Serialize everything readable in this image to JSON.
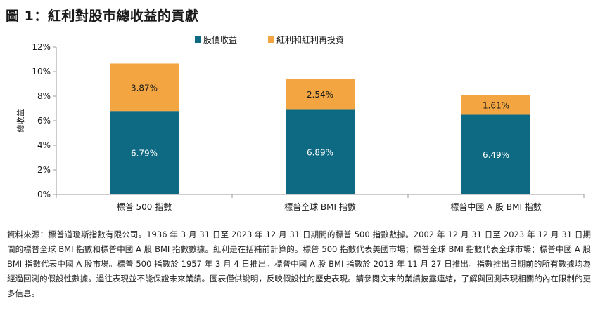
{
  "page": {
    "title": "圖 1：紅利對股市總收益的貢獻"
  },
  "chart_data": {
    "type": "bar",
    "stacked": true,
    "categories": [
      "標普 500 指數",
      "標普全球 BMI 指數",
      "標普中國 A 股 BMI 指數"
    ],
    "series": [
      {
        "name": "股價收益",
        "color": "#0e6a82",
        "values": [
          6.79,
          6.89,
          6.49
        ],
        "labels": [
          "6.79%",
          "6.89%",
          "6.49%"
        ],
        "label_color": "#ffffff"
      },
      {
        "name": "紅利和紅利再投資",
        "color": "#f2a541",
        "values": [
          3.87,
          2.54,
          1.61
        ],
        "labels": [
          "3.87%",
          "2.54%",
          "1.61%"
        ],
        "label_color": "#1a1a1a"
      }
    ],
    "ylabel": "總收益",
    "xlabel": "",
    "ylim": [
      0,
      12
    ],
    "yticks": [
      0,
      2,
      4,
      6,
      8,
      10,
      12
    ],
    "ytick_labels": [
      "0%",
      "2%",
      "4%",
      "6%",
      "8%",
      "10%",
      "12%"
    ],
    "grid": false,
    "legend_position": "top-center"
  },
  "footnote": "資料來源：標普道瓊斯指數有限公司。1936 年 3 月 31 日至 2023 年 12 月 31 日期間的標普 500 指數數據。2002 年 12 月 31 日至 2023 年 12 月 31 日期間的標普全球 BMI 指數和標普中國 A 股 BMI 指數數據。紅利是在括補前計算的。標普 500 指數代表美國市場；標普全球 BMI 指數代表全球市場；標普中國 A 股 BMI 指數代表中國 A 股市場。標普 500 指數於 1957 年 3 月 4 日推出。標普中國 A 股 BMI 指數於 2013 年 11 月 27 日推出。指數推出日期前的所有數據均為經過回測的假設性數據。過往表現並不能保證未來業績。圖表僅供說明，反映假設性的歷史表現。請參閱文末的業績披露連結，了解與回測表現相關的內在限制的更多信息。"
}
